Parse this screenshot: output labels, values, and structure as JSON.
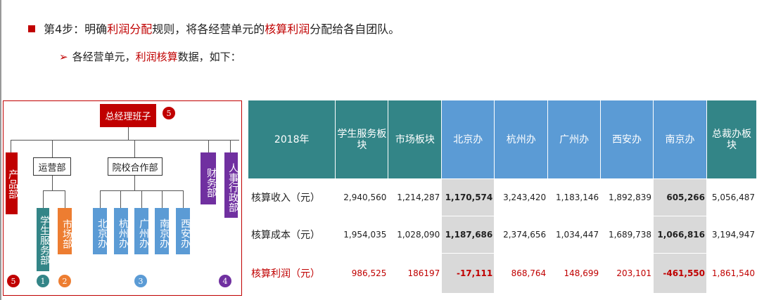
{
  "heading": {
    "prefix": "第4步：明确",
    "hl1": "利润分配",
    "mid": "规则，将各经营单元的",
    "hl2": "核算利润",
    "suffix": "分配给各自团队。"
  },
  "subheading": {
    "prefix": "各经营单元，",
    "hl": "利润核算",
    "suffix": "数据，如下："
  },
  "org": {
    "top": "总经理班子",
    "product": "产品部",
    "ops": "运营部",
    "coop": "院校合作部",
    "finance": "财务部",
    "hr": "人事行政部",
    "student": "学生服务部",
    "market": "市场部",
    "offices": [
      "北京办",
      "杭州办",
      "广州办",
      "南京办",
      "西安办"
    ],
    "badges": {
      "top": "5",
      "left": "5",
      "student": "1",
      "market": "2",
      "offices": "3",
      "right": "4"
    },
    "colors": {
      "red": "#c00000",
      "purple": "#7030a0",
      "teal": "#338587",
      "orange": "#ed7d31",
      "blue": "#5b9bd5"
    }
  },
  "table": {
    "headers": [
      "2018年",
      "学生服务板块",
      "市场板块",
      "北京办",
      "杭州办",
      "广州办",
      "西安办",
      "南京办",
      "总裁办板块"
    ],
    "rows": [
      {
        "label": "核算收入（元）",
        "values": [
          "2,940,560",
          "1,214,287",
          "1,170,574",
          "3,243,420",
          "1,183,146",
          "1,892,839",
          "605,266",
          "5,056,487"
        ]
      },
      {
        "label": "核算成本（元）",
        "values": [
          "1,954,035",
          "1,028,090",
          "1,187,686",
          "2,374,656",
          "1,034,447",
          "1,689,738",
          "1,066,816",
          "3,194,947"
        ]
      },
      {
        "label": "核算利润（元）",
        "values": [
          "986,525",
          "186197",
          "-17,111",
          "868,764",
          "148,699",
          "203,101",
          "-461,550",
          "1,861,540"
        ]
      }
    ]
  }
}
